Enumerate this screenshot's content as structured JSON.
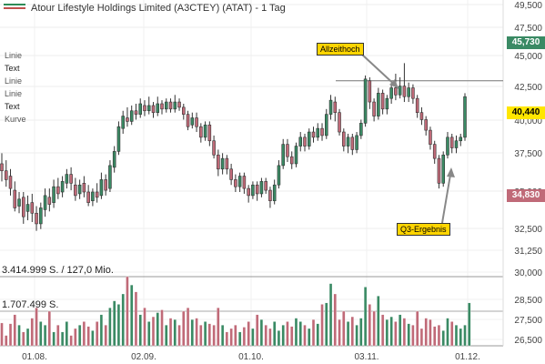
{
  "header": {
    "title": "Atour Lifestyle Holdings Limited (A3CTEY) (ATAT) - 1 Tag"
  },
  "sidebar": {
    "items": [
      "Linie",
      "Text",
      "Linie",
      "Linie",
      "Text",
      "Kurve"
    ]
  },
  "annotations": {
    "ath_label": "Allzeithoch",
    "q3_label": "Q3-Ergebnis"
  },
  "badges": {
    "high": "45,730",
    "current": "40,440",
    "low": "34,830"
  },
  "colors": {
    "up": "#3a8a64",
    "down": "#c06a78",
    "high_badge": "#3a8a64",
    "current_badge": "#ffe600",
    "low_badge": "#c06a78",
    "callout": "#ffd500"
  },
  "volume": {
    "max_label": "3.414.999 S. / 127,0 Mio.",
    "half_label": "1.707.499 S."
  },
  "chart_data": {
    "type": "candlestick",
    "title": "Atour Lifestyle Holdings Limited (A3CTEY) (ATAT) - 1 Tag",
    "price_axis_ticks": [
      "49,500",
      "47,500",
      "45,000",
      "42,500",
      "40,000",
      "37,500",
      "35,000",
      "32,500",
      "31,250",
      "30,000",
      "28,500",
      "27,500",
      "26,500"
    ],
    "x_tick_labels": [
      "01.08.",
      "02.09.",
      "01.10.",
      "03.11.",
      "01.12."
    ],
    "price_ylim": [
      32.5,
      49.5
    ],
    "high_marker": 45.73,
    "current_price": 40.44,
    "low_marker": 34.83,
    "horizontal_line": 41.3,
    "candles": [
      [
        36.6,
        36.2,
        37.2,
        35.6
      ],
      [
        36.2,
        35.7,
        36.8,
        35.3
      ],
      [
        35.9,
        35.2,
        36.3,
        34.8
      ],
      [
        35.1,
        34.1,
        35.6,
        33.9
      ],
      [
        34.2,
        34.6,
        35.0,
        33.8
      ],
      [
        34.7,
        33.6,
        35.0,
        33.2
      ],
      [
        33.9,
        34.3,
        34.8,
        33.4
      ],
      [
        34.4,
        33.8,
        34.9,
        33.3
      ],
      [
        33.8,
        33.2,
        34.2,
        32.8
      ],
      [
        33.2,
        34.1,
        34.4,
        32.9
      ],
      [
        34.0,
        34.8,
        35.2,
        33.6
      ],
      [
        34.7,
        34.3,
        35.2,
        33.9
      ],
      [
        34.4,
        35.3,
        35.7,
        34.1
      ],
      [
        35.3,
        34.9,
        35.8,
        34.6
      ],
      [
        35.0,
        35.6,
        35.9,
        34.7
      ],
      [
        35.5,
        36.0,
        36.3,
        35.2
      ],
      [
        36.0,
        35.5,
        36.4,
        35.1
      ],
      [
        35.4,
        34.8,
        35.8,
        34.5
      ],
      [
        34.9,
        35.4,
        35.7,
        34.6
      ],
      [
        35.5,
        35.0,
        35.9,
        34.7
      ],
      [
        35.0,
        34.4,
        35.4,
        34.2
      ],
      [
        34.5,
        35.0,
        35.2,
        34.2
      ],
      [
        35.0,
        34.7,
        35.5,
        34.4
      ],
      [
        34.8,
        35.7,
        36.1,
        34.6
      ],
      [
        35.7,
        35.1,
        36.0,
        34.8
      ],
      [
        35.2,
        36.5,
        36.8,
        35.0
      ],
      [
        36.4,
        37.3,
        37.6,
        36.1
      ],
      [
        37.3,
        38.7,
        39.0,
        37.1
      ],
      [
        38.6,
        39.3,
        39.6,
        38.3
      ],
      [
        39.2,
        39.0,
        39.8,
        38.7
      ],
      [
        39.0,
        39.6,
        39.9,
        38.8
      ],
      [
        39.6,
        39.4,
        40.0,
        39.1
      ],
      [
        39.4,
        40.0,
        40.3,
        39.2
      ],
      [
        39.9,
        39.6,
        40.2,
        39.3
      ],
      [
        39.6,
        39.9,
        40.4,
        39.4
      ],
      [
        39.9,
        39.5,
        40.1,
        39.2
      ],
      [
        39.5,
        40.0,
        40.4,
        39.3
      ],
      [
        40.0,
        39.7,
        40.2,
        39.4
      ],
      [
        39.7,
        40.1,
        40.3,
        39.5
      ],
      [
        40.1,
        39.7,
        40.3,
        39.5
      ],
      [
        39.7,
        40.1,
        40.5,
        39.5
      ],
      [
        40.1,
        39.8,
        40.3,
        39.6
      ],
      [
        39.8,
        39.4,
        40.0,
        39.1
      ],
      [
        39.4,
        38.7,
        39.6,
        38.5
      ],
      [
        38.8,
        39.2,
        39.5,
        38.6
      ],
      [
        39.2,
        38.7,
        39.5,
        38.4
      ],
      [
        38.7,
        38.1,
        38.9,
        37.8
      ],
      [
        38.1,
        38.8,
        39.0,
        37.9
      ],
      [
        38.8,
        37.9,
        39.0,
        37.6
      ],
      [
        37.9,
        37.1,
        38.2,
        36.9
      ],
      [
        37.1,
        36.3,
        37.4,
        35.9
      ],
      [
        36.3,
        36.9,
        37.2,
        36.0
      ],
      [
        36.9,
        36.3,
        37.1,
        36.0
      ],
      [
        36.3,
        35.7,
        36.6,
        35.4
      ],
      [
        35.7,
        35.3,
        36.0,
        35.0
      ],
      [
        35.3,
        35.9,
        36.1,
        35.0
      ],
      [
        35.9,
        35.2,
        36.1,
        34.9
      ],
      [
        35.2,
        34.8,
        35.4,
        34.4
      ],
      [
        34.8,
        35.4,
        35.6,
        34.6
      ],
      [
        35.4,
        34.9,
        35.6,
        34.5
      ],
      [
        34.9,
        35.6,
        35.8,
        34.7
      ],
      [
        35.6,
        35.1,
        35.8,
        34.9
      ],
      [
        35.1,
        34.5,
        35.3,
        34.1
      ],
      [
        34.5,
        35.4,
        35.7,
        34.3
      ],
      [
        35.4,
        36.5,
        36.8,
        35.2
      ],
      [
        36.5,
        37.7,
        38.0,
        36.3
      ],
      [
        37.7,
        37.0,
        38.0,
        36.7
      ],
      [
        37.0,
        36.6,
        37.3,
        36.3
      ],
      [
        36.6,
        37.6,
        37.8,
        36.4
      ],
      [
        37.6,
        38.1,
        38.4,
        37.3
      ],
      [
        38.1,
        37.6,
        38.3,
        37.3
      ],
      [
        37.6,
        38.4,
        38.6,
        37.4
      ],
      [
        38.4,
        38.1,
        38.7,
        37.8
      ],
      [
        38.1,
        38.6,
        38.9,
        37.9
      ],
      [
        38.6,
        38.2,
        38.9,
        37.9
      ],
      [
        38.2,
        39.4,
        39.7,
        38.0
      ],
      [
        39.4,
        40.2,
        40.5,
        39.1
      ],
      [
        40.1,
        39.5,
        40.4,
        39.0
      ],
      [
        39.5,
        38.4,
        39.7,
        38.2
      ],
      [
        38.4,
        37.6,
        38.6,
        37.3
      ],
      [
        37.6,
        38.1,
        38.3,
        37.2
      ],
      [
        38.1,
        37.4,
        38.3,
        37.1
      ],
      [
        37.4,
        38.2,
        38.4,
        37.2
      ],
      [
        38.2,
        38.9,
        39.1,
        38.0
      ],
      [
        38.9,
        41.4,
        41.6,
        38.7
      ],
      [
        41.3,
        40.1,
        41.5,
        39.7
      ],
      [
        40.1,
        39.3,
        40.3,
        39.0
      ],
      [
        39.3,
        40.6,
        40.9,
        39.1
      ],
      [
        40.6,
        39.7,
        40.8,
        39.4
      ],
      [
        39.7,
        40.3,
        40.5,
        39.4
      ],
      [
        40.3,
        40.9,
        41.1,
        40.0
      ],
      [
        40.9,
        40.5,
        41.7,
        40.2
      ],
      [
        40.5,
        41.0,
        41.5,
        40.3
      ],
      [
        41.0,
        40.4,
        42.3,
        40.1
      ],
      [
        40.4,
        40.9,
        41.2,
        40.1
      ],
      [
        40.9,
        40.3,
        41.1,
        40.0
      ],
      [
        40.3,
        39.5,
        40.5,
        39.2
      ],
      [
        39.5,
        39.1,
        39.8,
        38.8
      ],
      [
        39.1,
        38.5,
        39.3,
        38.2
      ],
      [
        38.5,
        37.7,
        38.7,
        37.4
      ],
      [
        37.7,
        36.9,
        37.9,
        36.6
      ],
      [
        36.9,
        35.5,
        37.1,
        35.2
      ],
      [
        35.5,
        37.1,
        37.3,
        35.3
      ],
      [
        37.1,
        38.1,
        38.4,
        36.9
      ],
      [
        38.1,
        37.5,
        38.3,
        37.2
      ],
      [
        37.5,
        37.9,
        38.2,
        37.2
      ],
      [
        37.9,
        38.1,
        38.3,
        37.6
      ],
      [
        38.1,
        40.4,
        40.6,
        37.9
      ]
    ],
    "volume_ylim": [
      0,
      3415000
    ],
    "volumes": [
      0.33,
      0.15,
      0.32,
      0.45,
      0.3,
      0.2,
      0.25,
      0.4,
      0.55,
      0.35,
      0.3,
      0.5,
      0.2,
      0.3,
      0.2,
      0.35,
      0.15,
      0.25,
      0.3,
      0.35,
      0.28,
      0.22,
      0.35,
      0.45,
      0.3,
      0.55,
      0.65,
      0.6,
      0.75,
      1.0,
      0.88,
      0.78,
      0.45,
      0.55,
      0.35,
      0.42,
      0.48,
      0.52,
      0.3,
      0.4,
      0.38,
      0.3,
      0.5,
      0.55,
      0.38,
      0.4,
      0.3,
      0.35,
      0.32,
      0.3,
      0.55,
      0.3,
      0.2,
      0.25,
      0.3,
      0.2,
      0.27,
      0.35,
      0.25,
      0.45,
      0.38,
      0.3,
      0.25,
      0.35,
      0.22,
      0.3,
      0.35,
      0.28,
      0.4,
      0.35,
      0.3,
      0.25,
      0.38,
      0.32,
      0.6,
      0.62,
      0.9,
      0.75,
      0.38,
      0.5,
      0.35,
      0.42,
      0.3,
      0.4,
      0.85,
      0.6,
      0.5,
      0.72,
      0.45,
      0.38,
      0.42,
      0.35,
      0.45,
      0.4,
      0.32,
      0.3,
      0.5,
      0.25,
      0.4,
      0.38,
      0.28,
      0.3,
      0.22,
      0.4,
      0.35,
      0.3,
      0.25,
      0.3,
      0.62
    ]
  }
}
